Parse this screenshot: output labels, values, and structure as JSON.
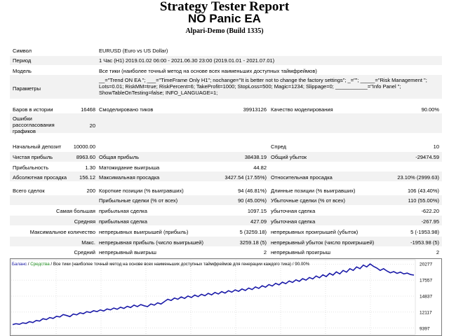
{
  "header": {
    "title": "Strategy Tester Report",
    "ea_name": "NO Panic EA",
    "server": "Alpari-Demo (Build 1335)"
  },
  "info": {
    "symbol_label": "Символ",
    "symbol_value": "EURUSD (Euro vs US Dollar)",
    "period_label": "Период",
    "period_value": "1 Час (H1) 2019.01.02 06:00 - 2021.06.30 23:00 (2019.01.01 - 2021.07.01)",
    "model_label": "Модель",
    "model_value": "Все тики (наиболее точный метод на основе всех наименьших доступных таймфреймов)",
    "params_label": "Параметры",
    "params_value": "__=\"Trend ON EA \"; ___=\"TimeFrame Only H1\"; nochange=\"It is better not to change the factory settings\"; _=\"\"; _____=\"Risk Management \"; Lots=0.01; RiskMM=true; RiskPercent=6; TakeProfit=1000; StopLoss=500; Magic=1234; Slippage=0; ___________=\"Info Panel \"; ShowTableOnTesting=false; INFO_LANGUAGE=1;"
  },
  "stats": {
    "bars_label": "Баров в истории",
    "bars_value": "16468",
    "ticks_label": "Смоделировано тиков",
    "ticks_value": "39913126",
    "quality_label": "Качество моделирования",
    "quality_value": "90.00%",
    "errors_label": "Ошибки рассогласования графиков",
    "errors_value": "20",
    "deposit_label": "Начальный депозит",
    "deposit_value": "10000.00",
    "spread_label": "Спред",
    "spread_value": "10",
    "net_label": "Чистая прибыль",
    "net_value": "8963.60",
    "gross_profit_label": "Общая прибыль",
    "gross_profit_value": "38438.19",
    "gross_loss_label": "Общий убыток",
    "gross_loss_value": "-29474.59",
    "pf_label": "Прибыльность",
    "pf_value": "1.30",
    "expected_label": "Матожидание выигрыша",
    "expected_value": "44.82",
    "abs_dd_label": "Абсолютная просадка",
    "abs_dd_value": "156.12",
    "max_dd_label": "Максимальная просадка",
    "max_dd_value": "3427.54 (17.55%)",
    "rel_dd_label": "Относительная просадка",
    "rel_dd_value": "23.10% (2999.63)",
    "total_label": "Всего сделок",
    "total_value": "200",
    "short_label": "Короткие позиции (% выигравших)",
    "short_value": "94 (46.81%)",
    "long_label": "Длинные позиции (% выигравших)",
    "long_value": "106 (43.40%)",
    "profit_trades_label": "Прибыльные сделки (% от всех)",
    "profit_trades_value": "90 (45.00%)",
    "loss_trades_label": "Убыточные сделки (% от всех)",
    "loss_trades_value": "110 (55.00%)",
    "largest_label": "Самая большая",
    "largest_profit_label": "прибыльная сделка",
    "largest_profit_value": "1097.15",
    "largest_loss_label": "убыточная сделка",
    "largest_loss_value": "-622.20",
    "average_label": "Средняя",
    "avg_profit_label": "прибыльная сделка",
    "avg_profit_value": "427.09",
    "avg_loss_label": "убыточная сделка",
    "avg_loss_value": "-267.95",
    "maxcount_label": "Максимальное количество",
    "cons_wins_label": "непрерывных выигрышей (прибыль)",
    "cons_wins_value": "5 (3259.18)",
    "cons_losses_label": "непрерывных проигрышей (убыток)",
    "cons_losses_value": "5 (-1953.98)",
    "maxamount_label": "Макс.",
    "cons_profit_label": "непрерывная прибыль (число выигрышей)",
    "cons_profit_value": "3259.18 (5)",
    "cons_loss_label": "непрерывный убыток (число проигрышей)",
    "cons_loss_value": "-1953.98 (5)",
    "avgcons_label": "Средний",
    "avg_wins_label": "непрерывный выигрыш",
    "avg_wins_value": "2",
    "avg_losses_label": "непрерывный проигрыш",
    "avg_losses_value": "2"
  },
  "chart_data": {
    "type": "line",
    "legend": {
      "balance": "Баланс",
      "sep1": " / ",
      "equity": "Средства",
      "sep2": " / ",
      "desc": "Все тики (наиболее точный метод на основе всех наименьших доступных таймфреймов для генерации каждого тика) / 90.00%"
    },
    "y_ticks": [
      20277,
      17557,
      14837,
      12117,
      9397
    ],
    "ylim": [
      8300,
      20900
    ],
    "series": [
      {
        "name": "Баланс",
        "color": "#1a1aa8",
        "values": [
          10000,
          10150,
          10050,
          10300,
          10200,
          10500,
          10350,
          10700,
          10600,
          11000,
          10850,
          11200,
          11050,
          11400,
          11300,
          11700,
          11550,
          11350,
          11800,
          11650,
          12000,
          11850,
          12200,
          12050,
          12350,
          12200,
          12500,
          12300,
          12650,
          12500,
          12800,
          12600,
          12950,
          12750,
          13100,
          12900,
          13300,
          13050,
          13400,
          13200,
          13050,
          13500,
          13300,
          13700,
          13500,
          13900,
          14300,
          14100,
          14500,
          14300,
          14700,
          14450,
          14850,
          14600,
          15000,
          14750,
          15150,
          14900,
          15300,
          15050,
          15450,
          15200,
          15600,
          15350,
          15750,
          15500,
          15900,
          15650,
          16050,
          15800,
          16200,
          15950,
          16400,
          16150,
          16600,
          16350,
          16800,
          16550,
          17000,
          16750,
          17200,
          16950,
          17400,
          17150,
          17600,
          17350,
          17800,
          17550,
          18000,
          17750,
          18250,
          17950,
          18450,
          18150,
          18700,
          18400,
          18950,
          18600,
          19200,
          18900,
          19500,
          19200,
          19800,
          19500,
          20100,
          19800,
          20300,
          19900,
          19600,
          19200,
          19500,
          19100,
          18800,
          19000,
          18700,
          18900,
          18600,
          18750,
          18500,
          18400
        ]
      }
    ]
  }
}
